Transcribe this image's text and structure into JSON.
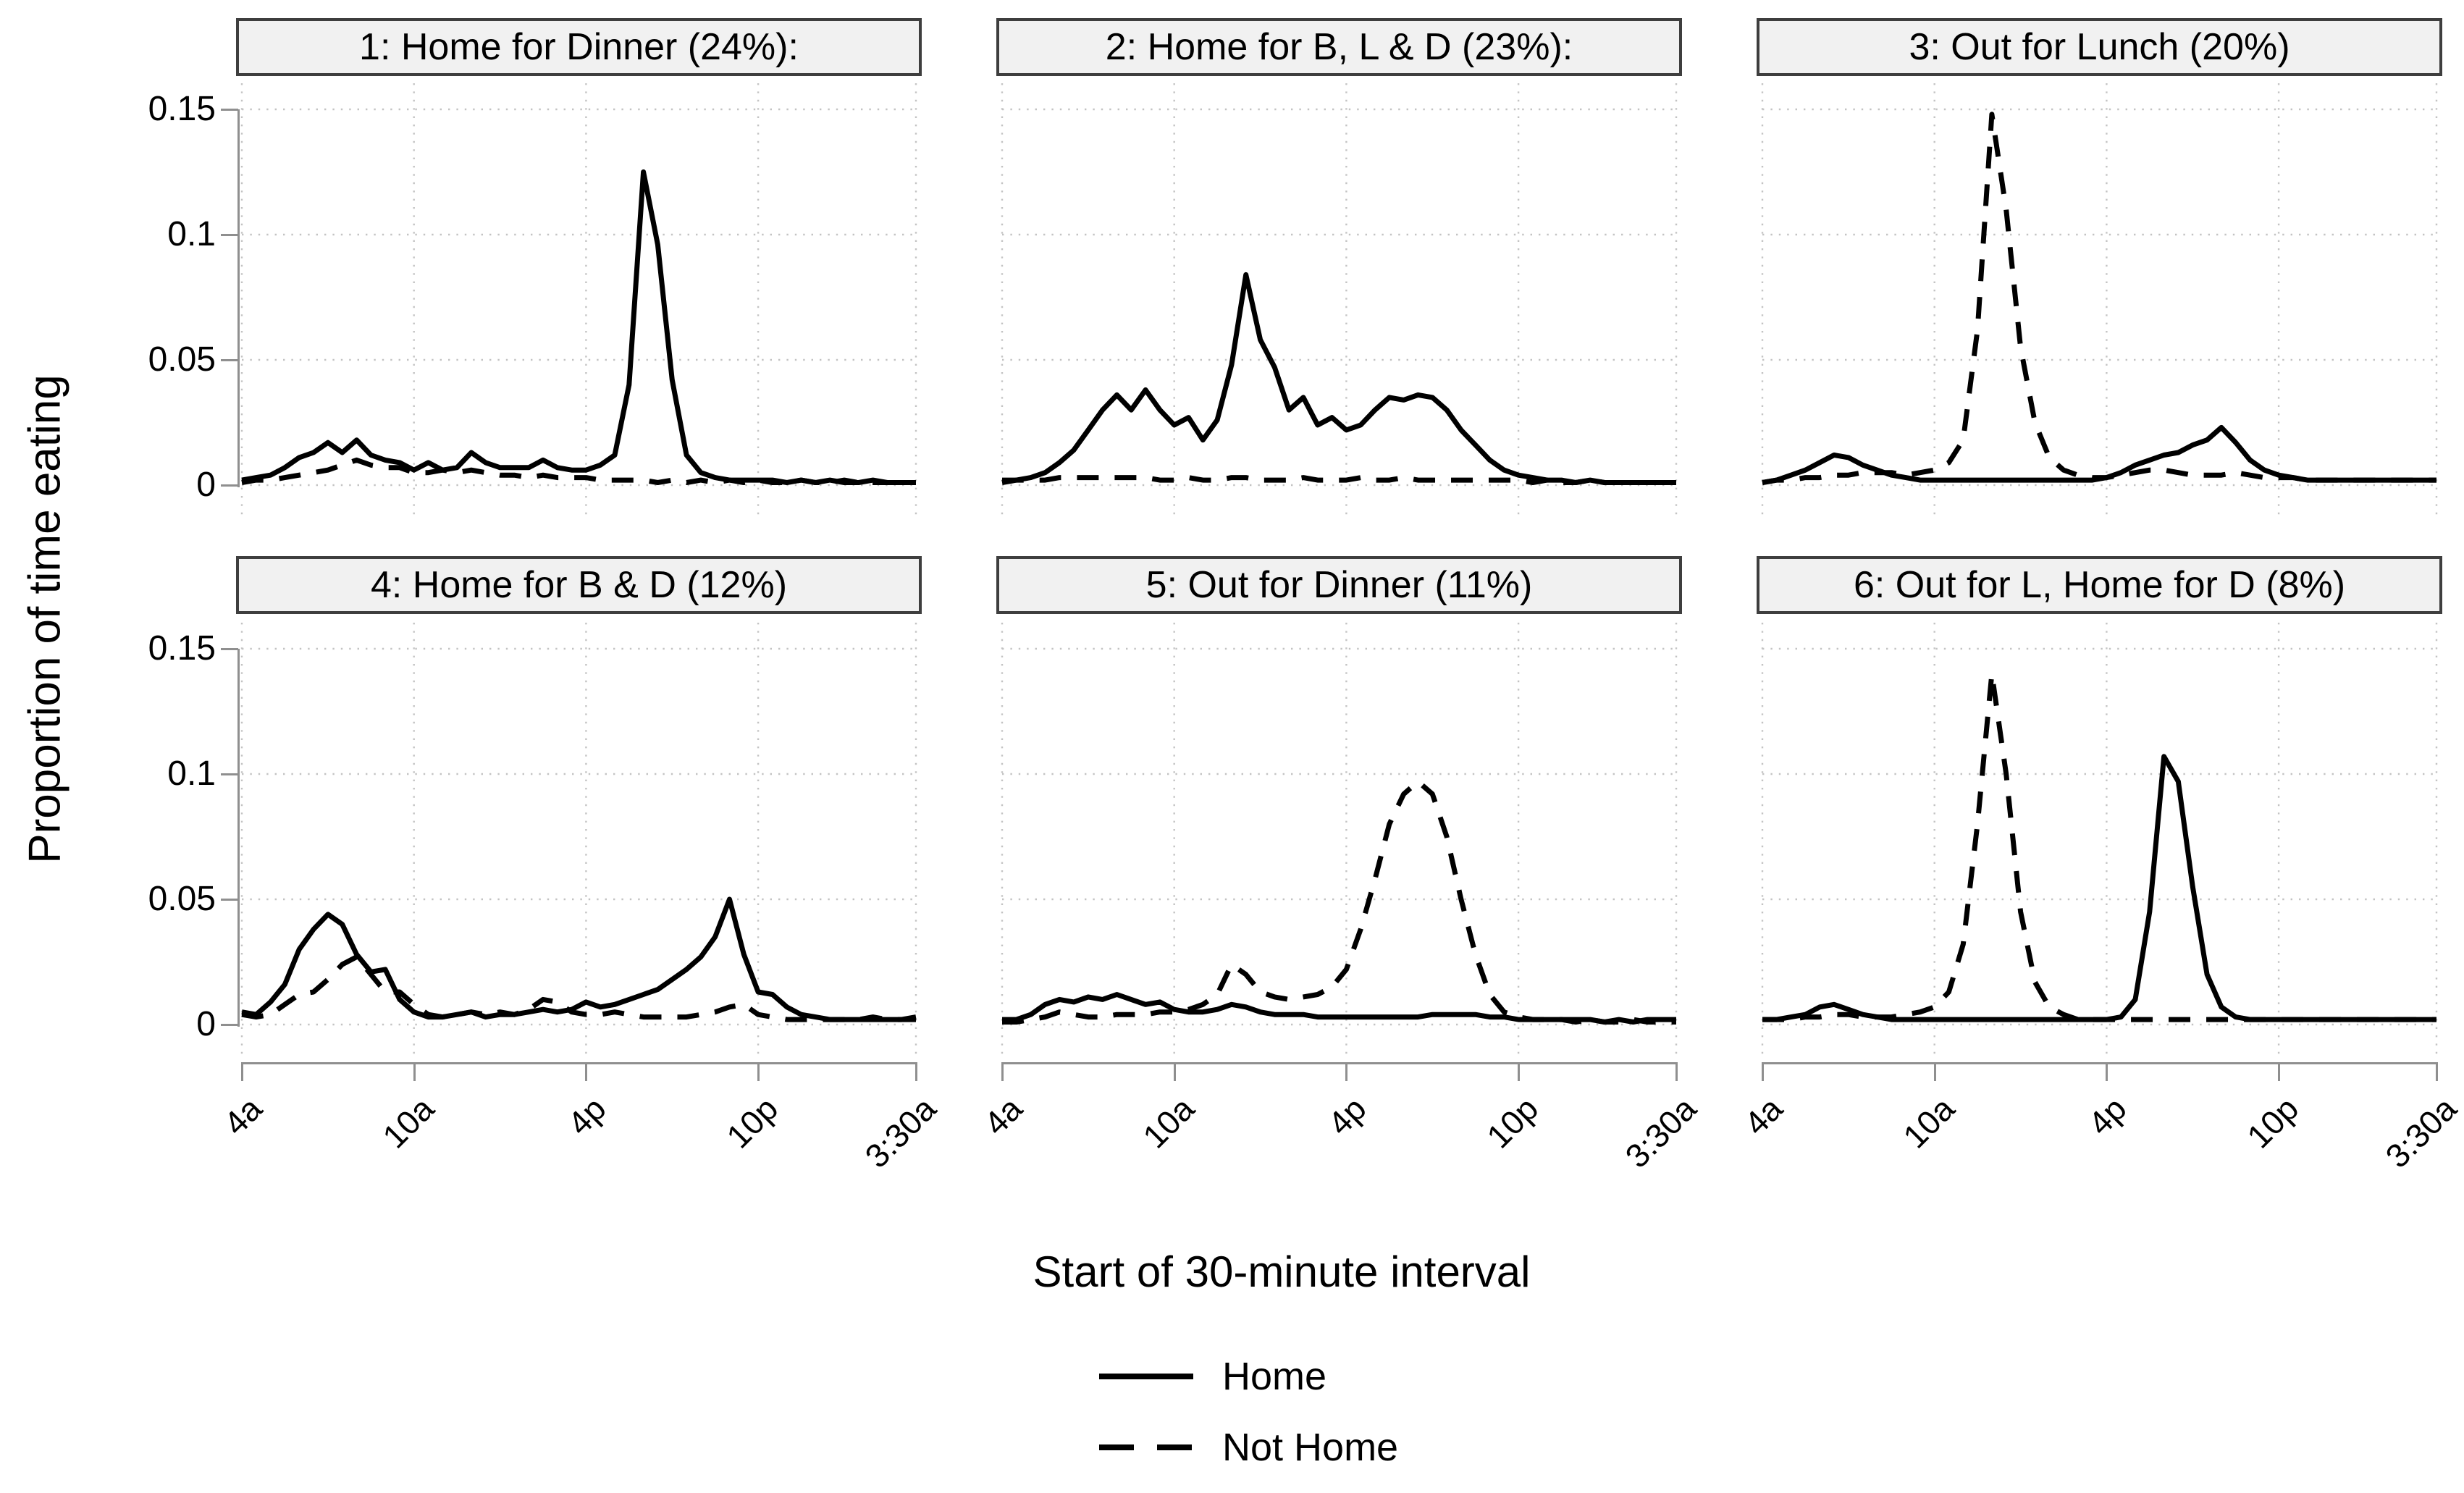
{
  "figure": {
    "y_axis_title": "Proportion of time eating",
    "x_axis_title": "Start of 30-minute interval",
    "y_tick_labels": [
      "0.15",
      "0.1",
      "0.05",
      "0"
    ],
    "x_tick_labels": [
      "4a",
      "10a",
      "4p",
      "10p",
      "3:30a"
    ],
    "legend": [
      {
        "label": "Home",
        "style": "solid"
      },
      {
        "label": "Not Home",
        "style": "dashed"
      }
    ],
    "colors": {
      "line": "#000000",
      "grid_dots": "#c3c3c3",
      "axis": "#8f8f8f",
      "header_bg": "#f1f1f1",
      "header_border": "#3e3e3e"
    }
  },
  "chart_data": [
    {
      "type": "line",
      "title": "1: Home for Dinner (24%):",
      "x": "48 half-hour intervals from 4:00a to 3:30a",
      "x_tick_labels": [
        "4a",
        "10a",
        "4p",
        "10p",
        "3:30a"
      ],
      "x_tick_index": [
        0,
        12,
        24,
        36,
        47
      ],
      "ylim": [
        0,
        0.15
      ],
      "series": [
        {
          "name": "Home",
          "dash": false,
          "values": [
            0.002,
            0.003,
            0.004,
            0.007,
            0.011,
            0.013,
            0.017,
            0.013,
            0.018,
            0.012,
            0.01,
            0.009,
            0.006,
            0.009,
            0.006,
            0.007,
            0.013,
            0.009,
            0.007,
            0.007,
            0.007,
            0.01,
            0.007,
            0.006,
            0.006,
            0.008,
            0.012,
            0.04,
            0.125,
            0.096,
            0.042,
            0.012,
            0.005,
            0.003,
            0.002,
            0.002,
            0.002,
            0.002,
            0.001,
            0.002,
            0.001,
            0.002,
            0.001,
            0.001,
            0.002,
            0.001,
            0.001,
            0.001
          ]
        },
        {
          "name": "Not Home",
          "dash": true,
          "values": [
            0.001,
            0.002,
            0.002,
            0.003,
            0.004,
            0.005,
            0.006,
            0.008,
            0.01,
            0.008,
            0.007,
            0.007,
            0.005,
            0.005,
            0.006,
            0.005,
            0.006,
            0.005,
            0.004,
            0.004,
            0.003,
            0.004,
            0.003,
            0.003,
            0.003,
            0.002,
            0.002,
            0.002,
            0.002,
            0.001,
            0.002,
            0.001,
            0.002,
            0.001,
            0.002,
            0.001,
            0.002,
            0.001,
            0.001,
            0.002,
            0.001,
            0.001,
            0.002,
            0.001,
            0.001,
            0.001,
            0.001,
            0.001
          ]
        }
      ]
    },
    {
      "type": "line",
      "title": "2: Home for B, L & D (23%):",
      "x": "48 half-hour intervals from 4:00a to 3:30a",
      "x_tick_labels": [
        "4a",
        "10a",
        "4p",
        "10p",
        "3:30a"
      ],
      "x_tick_index": [
        0,
        12,
        24,
        36,
        47
      ],
      "ylim": [
        0,
        0.15
      ],
      "series": [
        {
          "name": "Home",
          "dash": false,
          "values": [
            0.002,
            0.002,
            0.003,
            0.005,
            0.009,
            0.014,
            0.022,
            0.03,
            0.036,
            0.03,
            0.038,
            0.03,
            0.024,
            0.027,
            0.018,
            0.026,
            0.048,
            0.084,
            0.058,
            0.047,
            0.03,
            0.035,
            0.024,
            0.027,
            0.022,
            0.024,
            0.03,
            0.035,
            0.034,
            0.036,
            0.035,
            0.03,
            0.022,
            0.016,
            0.01,
            0.006,
            0.004,
            0.003,
            0.002,
            0.002,
            0.001,
            0.002,
            0.001,
            0.001,
            0.001,
            0.001,
            0.001,
            0.001
          ]
        },
        {
          "name": "Not Home",
          "dash": true,
          "values": [
            0.001,
            0.002,
            0.002,
            0.002,
            0.003,
            0.003,
            0.003,
            0.003,
            0.003,
            0.003,
            0.003,
            0.002,
            0.002,
            0.003,
            0.002,
            0.002,
            0.003,
            0.003,
            0.002,
            0.002,
            0.002,
            0.003,
            0.002,
            0.002,
            0.002,
            0.003,
            0.002,
            0.002,
            0.003,
            0.002,
            0.002,
            0.002,
            0.002,
            0.002,
            0.002,
            0.002,
            0.002,
            0.001,
            0.002,
            0.001,
            0.001,
            0.002,
            0.001,
            0.001,
            0.001,
            0.001,
            0.001,
            0.001
          ]
        }
      ]
    },
    {
      "type": "line",
      "title": "3: Out for Lunch (20%)",
      "x": "48 half-hour intervals from 4:00a to 3:30a",
      "x_tick_labels": [
        "4a",
        "10a",
        "4p",
        "10p",
        "3:30a"
      ],
      "x_tick_index": [
        0,
        12,
        24,
        36,
        47
      ],
      "ylim": [
        0,
        0.15
      ],
      "series": [
        {
          "name": "Home",
          "dash": false,
          "values": [
            0.001,
            0.002,
            0.004,
            0.006,
            0.009,
            0.012,
            0.011,
            0.008,
            0.006,
            0.004,
            0.003,
            0.002,
            0.002,
            0.002,
            0.002,
            0.002,
            0.002,
            0.002,
            0.002,
            0.002,
            0.002,
            0.002,
            0.002,
            0.002,
            0.003,
            0.005,
            0.008,
            0.01,
            0.012,
            0.013,
            0.016,
            0.018,
            0.023,
            0.017,
            0.01,
            0.006,
            0.004,
            0.003,
            0.002,
            0.002,
            0.002,
            0.002,
            0.002,
            0.002,
            0.002,
            0.002,
            0.002,
            0.002
          ]
        },
        {
          "name": "Not Home",
          "dash": true,
          "values": [
            0.001,
            0.002,
            0.002,
            0.003,
            0.003,
            0.004,
            0.004,
            0.005,
            0.005,
            0.005,
            0.004,
            0.005,
            0.006,
            0.009,
            0.018,
            0.062,
            0.148,
            0.11,
            0.055,
            0.025,
            0.011,
            0.006,
            0.004,
            0.003,
            0.003,
            0.004,
            0.005,
            0.006,
            0.006,
            0.005,
            0.004,
            0.004,
            0.004,
            0.005,
            0.004,
            0.003,
            0.003,
            0.003,
            0.002,
            0.002,
            0.002,
            0.002,
            0.002,
            0.002,
            0.002,
            0.002,
            0.002,
            0.002
          ]
        }
      ]
    },
    {
      "type": "line",
      "title": "4: Home for B & D (12%)",
      "x": "48 half-hour intervals from 4:00a to 3:30a",
      "x_tick_labels": [
        "4a",
        "10a",
        "4p",
        "10p",
        "3:30a"
      ],
      "x_tick_index": [
        0,
        12,
        24,
        36,
        47
      ],
      "ylim": [
        0,
        0.15
      ],
      "series": [
        {
          "name": "Home",
          "dash": false,
          "values": [
            0.005,
            0.004,
            0.009,
            0.016,
            0.03,
            0.038,
            0.044,
            0.04,
            0.028,
            0.021,
            0.022,
            0.01,
            0.005,
            0.003,
            0.003,
            0.004,
            0.005,
            0.003,
            0.004,
            0.004,
            0.005,
            0.006,
            0.005,
            0.006,
            0.009,
            0.007,
            0.008,
            0.01,
            0.012,
            0.014,
            0.018,
            0.022,
            0.027,
            0.035,
            0.05,
            0.028,
            0.013,
            0.012,
            0.007,
            0.004,
            0.003,
            0.002,
            0.002,
            0.002,
            0.002,
            0.002,
            0.002,
            0.003
          ]
        },
        {
          "name": "Not Home",
          "dash": true,
          "values": [
            0.004,
            0.003,
            0.004,
            0.008,
            0.012,
            0.013,
            0.018,
            0.024,
            0.027,
            0.02,
            0.013,
            0.013,
            0.008,
            0.004,
            0.003,
            0.004,
            0.005,
            0.004,
            0.005,
            0.004,
            0.006,
            0.01,
            0.009,
            0.005,
            0.004,
            0.004,
            0.005,
            0.004,
            0.003,
            0.003,
            0.003,
            0.003,
            0.004,
            0.005,
            0.007,
            0.008,
            0.004,
            0.003,
            0.002,
            0.002,
            0.002,
            0.002,
            0.002,
            0.002,
            0.003,
            0.002,
            0.002,
            0.002
          ]
        }
      ]
    },
    {
      "type": "line",
      "title": "5: Out for Dinner (11%)",
      "x": "48 half-hour intervals from 4:00a to 3:30a",
      "x_tick_labels": [
        "4a",
        "10a",
        "4p",
        "10p",
        "3:30a"
      ],
      "x_tick_index": [
        0,
        12,
        24,
        36,
        47
      ],
      "ylim": [
        0,
        0.15
      ],
      "series": [
        {
          "name": "Home",
          "dash": false,
          "values": [
            0.002,
            0.002,
            0.004,
            0.008,
            0.01,
            0.009,
            0.011,
            0.01,
            0.012,
            0.01,
            0.008,
            0.009,
            0.006,
            0.005,
            0.005,
            0.006,
            0.008,
            0.007,
            0.005,
            0.004,
            0.004,
            0.004,
            0.003,
            0.003,
            0.003,
            0.003,
            0.003,
            0.003,
            0.003,
            0.003,
            0.004,
            0.004,
            0.004,
            0.004,
            0.003,
            0.003,
            0.002,
            0.002,
            0.002,
            0.002,
            0.002,
            0.002,
            0.001,
            0.002,
            0.001,
            0.002,
            0.002,
            0.002
          ]
        },
        {
          "name": "Not Home",
          "dash": true,
          "values": [
            0.001,
            0.001,
            0.002,
            0.003,
            0.005,
            0.004,
            0.003,
            0.003,
            0.004,
            0.004,
            0.004,
            0.005,
            0.005,
            0.006,
            0.008,
            0.012,
            0.024,
            0.02,
            0.013,
            0.011,
            0.01,
            0.011,
            0.012,
            0.015,
            0.022,
            0.038,
            0.058,
            0.08,
            0.092,
            0.097,
            0.092,
            0.075,
            0.05,
            0.028,
            0.012,
            0.005,
            0.003,
            0.002,
            0.002,
            0.002,
            0.001,
            0.002,
            0.001,
            0.001,
            0.002,
            0.001,
            0.001,
            0.001
          ]
        }
      ]
    },
    {
      "type": "line",
      "title": "6: Out for L, Home for D (8%)",
      "x": "48 half-hour intervals from 4:00a to 3:30a",
      "x_tick_labels": [
        "4a",
        "10a",
        "4p",
        "10p",
        "3:30a"
      ],
      "x_tick_index": [
        0,
        12,
        24,
        36,
        47
      ],
      "ylim": [
        0,
        0.15
      ],
      "series": [
        {
          "name": "Home",
          "dash": false,
          "values": [
            0.002,
            0.002,
            0.003,
            0.004,
            0.007,
            0.008,
            0.006,
            0.004,
            0.003,
            0.002,
            0.002,
            0.002,
            0.002,
            0.002,
            0.002,
            0.002,
            0.002,
            0.002,
            0.002,
            0.002,
            0.002,
            0.002,
            0.002,
            0.002,
            0.002,
            0.003,
            0.01,
            0.045,
            0.107,
            0.097,
            0.055,
            0.02,
            0.007,
            0.003,
            0.002,
            0.002,
            0.002,
            0.002,
            0.002,
            0.002,
            0.002,
            0.002,
            0.002,
            0.002,
            0.002,
            0.002,
            0.002,
            0.002
          ]
        },
        {
          "name": "Not Home",
          "dash": true,
          "values": [
            0.002,
            0.002,
            0.002,
            0.003,
            0.003,
            0.004,
            0.004,
            0.003,
            0.003,
            0.003,
            0.004,
            0.005,
            0.007,
            0.013,
            0.032,
            0.08,
            0.14,
            0.1,
            0.045,
            0.017,
            0.007,
            0.004,
            0.002,
            0.002,
            0.002,
            0.002,
            0.002,
            0.002,
            0.002,
            0.002,
            0.002,
            0.002,
            0.002,
            0.002,
            0.002,
            0.002,
            0.002,
            0.002,
            0.002,
            0.002,
            0.002,
            0.002,
            0.002,
            0.002,
            0.002,
            0.002,
            0.002,
            0.002
          ]
        }
      ]
    }
  ]
}
